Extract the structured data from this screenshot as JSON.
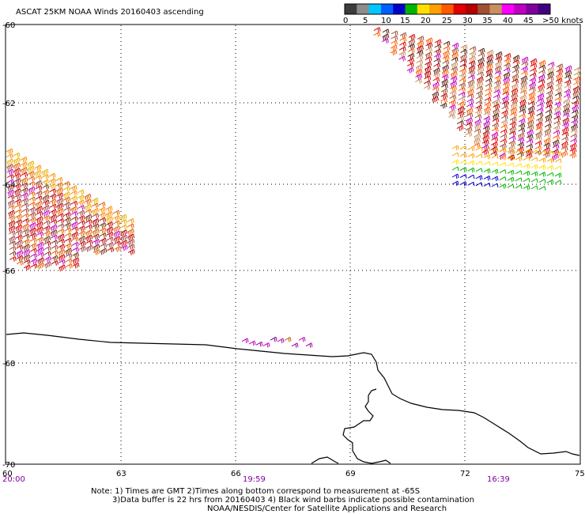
{
  "title": "ASCAT 25KM NOAA Winds 20160403 ascending",
  "colorbar": {
    "labels": [
      "0",
      "5",
      "10",
      "15",
      "20",
      "25",
      "30",
      "35",
      "40",
      "45",
      ">50 knots"
    ],
    "colors": [
      "#3c3c3c",
      "#8c8c8c",
      "#00c8ff",
      "#0060ff",
      "#0000c8",
      "#00b400",
      "#ffe000",
      "#ffa000",
      "#ff5a00",
      "#e00000",
      "#b40000",
      "#a05030",
      "#c89060",
      "#ff00ff",
      "#c000c0",
      "#8000a0",
      "#400080"
    ]
  },
  "axes": {
    "lat_labels": [
      "-60",
      "-62",
      "-64",
      "-66",
      "-68",
      "-70"
    ],
    "lon_labels": [
      "60",
      "63",
      "66",
      "69",
      "72",
      "75"
    ],
    "times": [
      "20:00",
      "19:59",
      "16:39"
    ]
  },
  "notes": {
    "line1": "Note: 1) Times are GMT 2)Times along bottom correspond to measurement at -65S",
    "line2": "3)Data buffer is 22 hrs from 20160403 4) Black wind barbs indicate possible contamination",
    "line3": "NOAA/NESDIS/Center for Satellite Applications and Research"
  },
  "colors": {
    "time_label": "#8000a0",
    "grid": "#000000",
    "coast": "#000000"
  }
}
